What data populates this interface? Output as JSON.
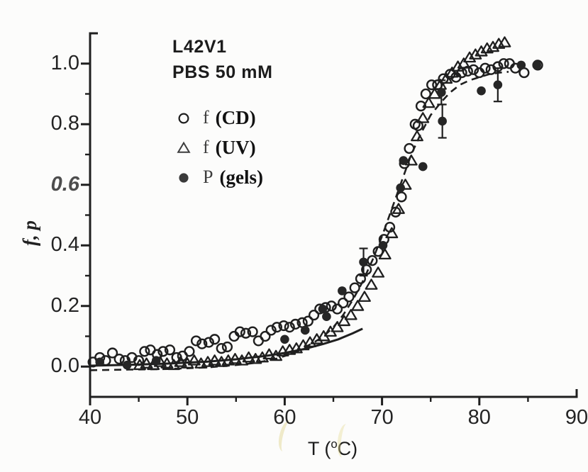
{
  "figure": {
    "background": "#fcfcfb",
    "ink": "#1f1f1f",
    "marker_fill": "#262626",
    "annotation": {
      "line1": "L42V1",
      "line2": "PBS 50 mM"
    },
    "legend": {
      "items": [
        {
          "marker": "open-circle",
          "symbol": "f",
          "paren": "(CD)"
        },
        {
          "marker": "open-triangle",
          "symbol": "f",
          "paren": "(UV)"
        },
        {
          "marker": "filled-circle",
          "symbol": "P",
          "paren": "(gels)"
        }
      ]
    },
    "xlabel_parts": {
      "pre": "T (",
      "deg": "o",
      "post": "C)"
    },
    "ylabel": "f, p"
  },
  "chart_data": {
    "type": "scatter",
    "title": "L42V1 PBS 50 mM",
    "xlabel": "T (°C)",
    "ylabel": "f, p",
    "xlim": [
      40,
      90
    ],
    "ylim": [
      -0.1,
      1.1
    ],
    "x_ticks": [
      40,
      50,
      60,
      70,
      80,
      90
    ],
    "x_minor_ticks": [
      45,
      55,
      65,
      75,
      85
    ],
    "y_ticks": [
      "0.0",
      "0.2",
      "0.4",
      "0.6",
      "0.8",
      "1.0"
    ],
    "y_tick_values": [
      0,
      0.2,
      0.4,
      0.6,
      0.8,
      1.0
    ],
    "y_minor_ticks": [
      0.1,
      0.3,
      0.5,
      0.7,
      0.9
    ],
    "grid": false,
    "legend_position": "upper-left-inside",
    "series": [
      {
        "name": "f (CD)",
        "marker": "open-circle",
        "points": [
          [
            40.3,
            0.015
          ],
          [
            41,
            0.03
          ],
          [
            41.6,
            0.02
          ],
          [
            42.3,
            0.045
          ],
          [
            43,
            0.025
          ],
          [
            43.6,
            0.02
          ],
          [
            44.3,
            0.03
          ],
          [
            45,
            0.02
          ],
          [
            45.6,
            0.05
          ],
          [
            46.2,
            0.055
          ],
          [
            46.9,
            0.04
          ],
          [
            47.5,
            0.05
          ],
          [
            48.2,
            0.055
          ],
          [
            48.9,
            0.03
          ],
          [
            49.5,
            0.035
          ],
          [
            50.2,
            0.05
          ],
          [
            50.9,
            0.085
          ],
          [
            51.5,
            0.075
          ],
          [
            52.2,
            0.08
          ],
          [
            52.8,
            0.09
          ],
          [
            53.5,
            0.06
          ],
          [
            54.1,
            0.065
          ],
          [
            54.8,
            0.1
          ],
          [
            55.4,
            0.115
          ],
          [
            56,
            0.11
          ],
          [
            56.7,
            0.115
          ],
          [
            57.3,
            0.085
          ],
          [
            58,
            0.1
          ],
          [
            58.6,
            0.12
          ],
          [
            59.2,
            0.13
          ],
          [
            59.9,
            0.135
          ],
          [
            60.5,
            0.13
          ],
          [
            61.1,
            0.14
          ],
          [
            61.8,
            0.145
          ],
          [
            62.4,
            0.15
          ],
          [
            63,
            0.17
          ],
          [
            63.6,
            0.19
          ],
          [
            64.2,
            0.195
          ],
          [
            64.8,
            0.2
          ],
          [
            65.4,
            0.19
          ],
          [
            66,
            0.21
          ],
          [
            66.6,
            0.23
          ],
          [
            67.2,
            0.26
          ],
          [
            67.8,
            0.29
          ],
          [
            68.4,
            0.32
          ],
          [
            69,
            0.35
          ],
          [
            69.6,
            0.38
          ],
          [
            70.2,
            0.42
          ],
          [
            70.8,
            0.46
          ],
          [
            71.4,
            0.51
          ],
          [
            72,
            0.56
          ],
          [
            72.3,
            0.67
          ],
          [
            72.8,
            0.72
          ],
          [
            73.4,
            0.8
          ],
          [
            73.7,
            0.795
          ],
          [
            74,
            0.86
          ],
          [
            74.5,
            0.9
          ],
          [
            75.1,
            0.93
          ],
          [
            75.7,
            0.93
          ],
          [
            76.3,
            0.95
          ],
          [
            77,
            0.965
          ],
          [
            77.6,
            0.955
          ],
          [
            78.2,
            0.97
          ],
          [
            78.8,
            0.975
          ],
          [
            79.4,
            0.98
          ],
          [
            80,
            0.97
          ],
          [
            80.6,
            0.985
          ],
          [
            81.2,
            0.98
          ],
          [
            81.9,
            0.99
          ],
          [
            82.5,
            1.0
          ],
          [
            83.1,
            1.0
          ],
          [
            83.7,
            0.985
          ],
          [
            84.6,
            0.97
          ],
          [
            86,
            0.995
          ]
        ]
      },
      {
        "name": "f (UV)",
        "marker": "open-triangle",
        "points": [
          [
            45.1,
            0.005
          ],
          [
            45.8,
            0.01
          ],
          [
            46.5,
            0.005
          ],
          [
            47.2,
            0.015
          ],
          [
            47.9,
            0.01
          ],
          [
            48.6,
            0.005
          ],
          [
            49.3,
            0.015
          ],
          [
            50,
            0.01
          ],
          [
            50.7,
            0.02
          ],
          [
            51.4,
            0.01
          ],
          [
            52.1,
            0.015
          ],
          [
            52.8,
            0.02
          ],
          [
            53.5,
            0.015
          ],
          [
            54.2,
            0.02
          ],
          [
            54.9,
            0.025
          ],
          [
            55.6,
            0.02
          ],
          [
            56.3,
            0.03
          ],
          [
            57,
            0.025
          ],
          [
            57.7,
            0.03
          ],
          [
            58.4,
            0.04
          ],
          [
            59.1,
            0.035
          ],
          [
            59.8,
            0.05
          ],
          [
            60.5,
            0.055
          ],
          [
            61.2,
            0.06
          ],
          [
            61.9,
            0.07
          ],
          [
            62.6,
            0.08
          ],
          [
            63.3,
            0.09
          ],
          [
            64,
            0.1
          ],
          [
            64.7,
            0.115
          ],
          [
            65.4,
            0.13
          ],
          [
            66.1,
            0.15
          ],
          [
            66.8,
            0.17
          ],
          [
            67.5,
            0.2
          ],
          [
            68.2,
            0.23
          ],
          [
            68.9,
            0.27
          ],
          [
            69.6,
            0.31
          ],
          [
            70.3,
            0.37
          ],
          [
            71,
            0.44
          ],
          [
            71.7,
            0.52
          ],
          [
            72.4,
            0.6
          ],
          [
            73,
            0.68
          ],
          [
            73.6,
            0.76
          ],
          [
            74.2,
            0.82
          ],
          [
            74.8,
            0.87
          ],
          [
            75.4,
            0.9
          ],
          [
            76,
            0.93
          ],
          [
            76.6,
            0.95
          ],
          [
            77.2,
            0.97
          ],
          [
            77.8,
            0.99
          ],
          [
            78.4,
            1.0
          ],
          [
            79,
            1.02
          ],
          [
            79.6,
            1.03
          ],
          [
            80.2,
            1.04
          ],
          [
            80.8,
            1.05
          ],
          [
            81.4,
            1.055
          ],
          [
            82,
            1.065
          ],
          [
            82.6,
            1.07
          ]
        ]
      },
      {
        "name": "P (gels)",
        "marker": "filled-circle",
        "points": [
          [
            41,
            0.015,
            0
          ],
          [
            43.8,
            0.005,
            0
          ],
          [
            46.8,
            0.02,
            0
          ],
          [
            60,
            0.09,
            0
          ],
          [
            62.1,
            0.12,
            0
          ],
          [
            63.9,
            0.19,
            0
          ],
          [
            64.3,
            0.165,
            0
          ],
          [
            65.9,
            0.25,
            0
          ],
          [
            68.1,
            0.345,
            0.045
          ],
          [
            70.1,
            0.4,
            0
          ],
          [
            71.9,
            0.59,
            0
          ],
          [
            72.2,
            0.68,
            0
          ],
          [
            74.2,
            0.66,
            0
          ],
          [
            76.1,
            0.905,
            0.04
          ],
          [
            76.2,
            0.81,
            0.055
          ],
          [
            80.2,
            0.91,
            0
          ],
          [
            81.9,
            0.93,
            0.055
          ],
          [
            84.3,
            0.995,
            0
          ],
          [
            85.9,
            0.995,
            0
          ]
        ]
      }
    ],
    "curves": [
      {
        "name": "fit-dashed",
        "style": "dashed",
        "points": [
          [
            40,
            -0.012
          ],
          [
            44,
            -0.01
          ],
          [
            48,
            -0.008
          ],
          [
            52,
            -0.003
          ],
          [
            55,
            0.005
          ],
          [
            57,
            0.012
          ],
          [
            59,
            0.025
          ],
          [
            61,
            0.045
          ],
          [
            63,
            0.08
          ],
          [
            64,
            0.1
          ],
          [
            65,
            0.13
          ],
          [
            66,
            0.17
          ],
          [
            67,
            0.22
          ],
          [
            68,
            0.28
          ],
          [
            69,
            0.35
          ],
          [
            70,
            0.43
          ],
          [
            71,
            0.52
          ],
          [
            72,
            0.61
          ],
          [
            73,
            0.7
          ],
          [
            74,
            0.77
          ],
          [
            75,
            0.83
          ],
          [
            76,
            0.87
          ],
          [
            77,
            0.905
          ],
          [
            78,
            0.93
          ],
          [
            79,
            0.945
          ],
          [
            80,
            0.955
          ],
          [
            81,
            0.965
          ],
          [
            82,
            0.97
          ],
          [
            83,
            0.973
          ]
        ]
      },
      {
        "name": "fit-solid",
        "style": "solid",
        "points": [
          [
            40,
            0.003
          ],
          [
            44,
            0.006
          ],
          [
            48,
            0.01
          ],
          [
            52,
            0.016
          ],
          [
            55,
            0.024
          ],
          [
            58,
            0.035
          ],
          [
            60,
            0.045
          ],
          [
            62,
            0.058
          ],
          [
            64,
            0.075
          ],
          [
            65.5,
            0.09
          ],
          [
            67,
            0.11
          ],
          [
            68,
            0.125
          ]
        ]
      }
    ]
  }
}
